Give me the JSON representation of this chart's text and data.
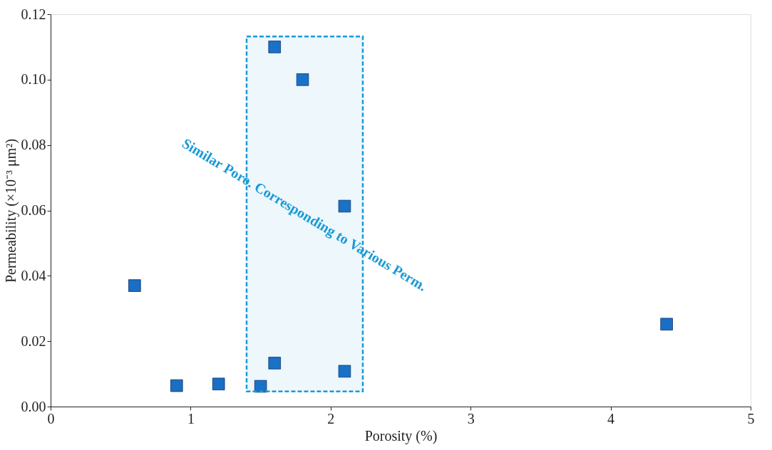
{
  "chart_data": {
    "type": "scatter",
    "xlabel": "Porosity (%)",
    "ylabel": "Permeability (×10⁻³ μm²)",
    "x": [
      0.6,
      0.9,
      1.2,
      1.5,
      1.6,
      1.6,
      1.8,
      2.1,
      2.1,
      4.4
    ],
    "series": [
      {
        "color": "#1a6fc4",
        "values": [
          0.037,
          0.0064,
          0.0069,
          0.0062,
          0.0133,
          0.11,
          0.1,
          0.0613,
          0.0108,
          0.0252
        ]
      }
    ],
    "xlim": [
      0,
      5
    ],
    "xticks": [
      0,
      1,
      2,
      3,
      4,
      5
    ],
    "ylim": [
      0,
      0.12
    ],
    "yticks": [
      {
        "value": 0,
        "label": "0.00"
      },
      {
        "value": 0.02,
        "label": "0.02"
      },
      {
        "value": 0.04,
        "label": "0.04"
      },
      {
        "value": 0.06,
        "label": "0.06"
      },
      {
        "value": 0.08,
        "label": "0.08"
      },
      {
        "value": 0.1,
        "label": "0.10"
      },
      {
        "value": 0.12,
        "label": "0.12"
      }
    ],
    "bands": [
      {
        "axis": "x",
        "from": 1.4,
        "to": 2.23,
        "color": "#1a9ad6"
      }
    ],
    "annotations": [
      "Similar Poro. Corresponding to Various Perm."
    ],
    "marker": "square",
    "grid": false
  }
}
